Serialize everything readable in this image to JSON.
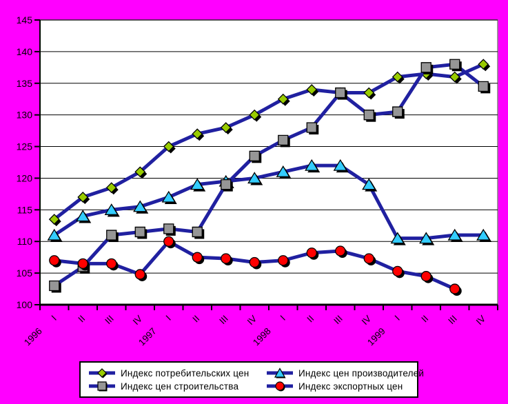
{
  "background_color": "#FF00FF",
  "plot_background": "#FFFFFF",
  "line_color": "#2020A0",
  "axis_color": "#000000",
  "chart_data": {
    "type": "line",
    "grid": true,
    "legend_position": "bottom",
    "ylim": [
      100,
      145
    ],
    "y_ticks": [
      100,
      105,
      110,
      115,
      120,
      125,
      130,
      135,
      140,
      145
    ],
    "x_categories": [
      "I",
      "II",
      "III",
      "IV",
      "I",
      "II",
      "III",
      "IV",
      "I",
      "II",
      "III",
      "IV",
      "I",
      "II",
      "III",
      "IV"
    ],
    "x_groups": [
      {
        "label": "1996",
        "start_index": 0
      },
      {
        "label": "1997",
        "start_index": 4
      },
      {
        "label": "1998",
        "start_index": 8
      },
      {
        "label": "1999",
        "start_index": 12
      }
    ],
    "series": [
      {
        "name": "Индекс потребительских цен",
        "marker": "diamond",
        "color": "#99CC00",
        "values": [
          113.5,
          117,
          118.5,
          121,
          125,
          127,
          128,
          130,
          132.5,
          134,
          133.5,
          133.5,
          136,
          136.5,
          136,
          138
        ]
      },
      {
        "name": "Индекс цен производителей",
        "marker": "triangle",
        "color": "#33CCFF",
        "values": [
          111,
          114,
          115,
          115.5,
          117,
          119,
          119.5,
          120,
          121,
          122,
          122,
          119,
          110.5,
          110.5,
          111,
          111
        ]
      },
      {
        "name": "Индекс цен строительства",
        "marker": "square",
        "color": "#969696",
        "values": [
          103,
          106,
          111,
          111.5,
          112,
          111.5,
          119,
          123.5,
          126,
          128,
          133.5,
          130,
          130.5,
          137.5,
          138,
          134.5
        ]
      },
      {
        "name": "Индекс экспортных цен",
        "marker": "circle",
        "color": "#FF0000",
        "values": [
          107,
          106.5,
          106.5,
          104.8,
          110,
          107.5,
          107.3,
          106.7,
          107,
          108.2,
          108.5,
          107.3,
          105.3,
          104.5,
          102.5,
          null
        ]
      }
    ]
  }
}
